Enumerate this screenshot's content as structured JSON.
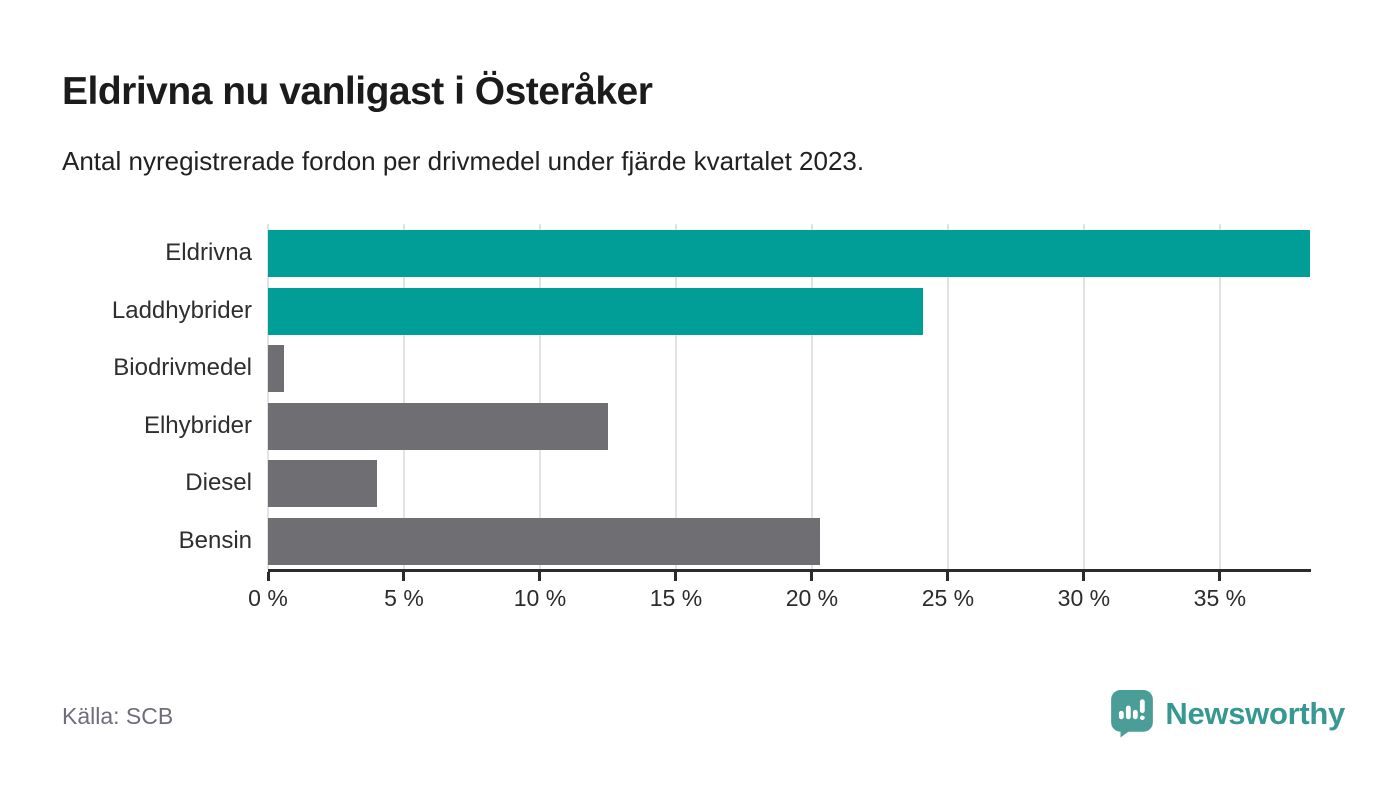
{
  "header": {
    "title": "Eldrivna nu vanligast i Österåker",
    "subtitle": "Antal nyregistrerade fordon per drivmedel under fjärde kvartalet 2023."
  },
  "footer": {
    "source": "Källa: SCB",
    "brand": "Newsworthy"
  },
  "colors": {
    "highlight": "#009e97",
    "default": "#6e6e73",
    "grid": "#e2e2e2",
    "axis": "#2b2b2b",
    "brand_icon": "#4a9e97",
    "brand_text": "#379892"
  },
  "chart_data": {
    "type": "bar",
    "orientation": "horizontal",
    "title": "Eldrivna nu vanligast i Österåker",
    "subtitle": "Antal nyregistrerade fordon per drivmedel under fjärde kvartalet 2023.",
    "categories": [
      "Eldrivna",
      "Laddhybrider",
      "Biodrivmedel",
      "Elhybrider",
      "Diesel",
      "Bensin"
    ],
    "values": [
      38.3,
      24.1,
      0.6,
      12.5,
      4.0,
      20.3
    ],
    "unit": "%",
    "bar_colors": [
      "#009e97",
      "#009e97",
      "#6e6e73",
      "#6e6e73",
      "#6e6e73",
      "#6e6e73"
    ],
    "xlim": [
      0,
      38.35
    ],
    "x_ticks": [
      0,
      5,
      10,
      15,
      20,
      25,
      30,
      35
    ],
    "x_tick_labels": [
      "0 %",
      "5 %",
      "10 %",
      "15 %",
      "20 %",
      "25 %",
      "30 %",
      "35 %"
    ],
    "grid": true,
    "legend": "none",
    "xlabel": "",
    "ylabel": ""
  }
}
